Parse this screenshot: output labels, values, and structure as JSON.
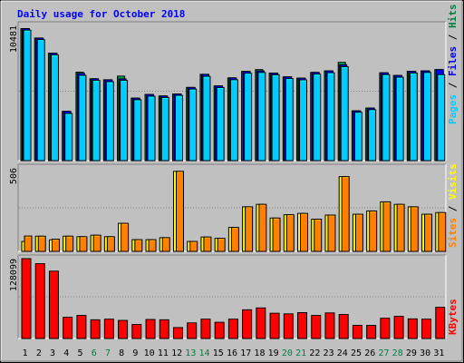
{
  "title": "Daily usage for October 2018",
  "colors": {
    "background": "#c0c0c0",
    "title": "#0000ff",
    "pages": "#00ccff",
    "files": "#0000ff",
    "hits": "#008040",
    "visits": "#ffff00",
    "sites": "#ff8000",
    "kbytes": "#ff0000",
    "weekend_label": "#008040"
  },
  "chart_data": [
    {
      "type": "bar",
      "panel": "hits-files-pages",
      "ymax_label": "10481",
      "ylim": [
        0,
        10481
      ],
      "legend": [
        "Pages",
        "Files",
        "Hits"
      ],
      "categories": [
        "1",
        "2",
        "3",
        "4",
        "5",
        "6",
        "7",
        "8",
        "9",
        "10",
        "11",
        "12",
        "13",
        "14",
        "15",
        "16",
        "17",
        "18",
        "19",
        "20",
        "21",
        "22",
        "23",
        "24",
        "25",
        "26",
        "27",
        "28",
        "29",
        "30",
        "31"
      ],
      "weekend_days": [
        "6",
        "7",
        "13",
        "14",
        "20",
        "21",
        "27",
        "28"
      ],
      "series": [
        {
          "name": "Hits",
          "values": [
            10370,
            9630,
            8440,
            3870,
            6950,
            6430,
            6350,
            6640,
            4910,
            5200,
            5080,
            5240,
            5750,
            6780,
            5870,
            6500,
            7010,
            7150,
            6880,
            6580,
            6480,
            6930,
            7050,
            7720,
            3910,
            4130,
            6900,
            6690,
            7020,
            7050,
            7150
          ]
        },
        {
          "name": "Files",
          "values": [
            10370,
            9630,
            8440,
            3870,
            6850,
            6430,
            6350,
            6420,
            4910,
            5200,
            5080,
            5240,
            5750,
            6780,
            5870,
            6500,
            7010,
            7050,
            6880,
            6580,
            6480,
            6930,
            7050,
            7530,
            3910,
            4130,
            6900,
            6690,
            7020,
            7050,
            7150
          ]
        },
        {
          "name": "Pages",
          "values": [
            10250,
            9500,
            8300,
            3700,
            6700,
            6300,
            6200,
            6300,
            4780,
            5060,
            4960,
            5120,
            5620,
            6620,
            5740,
            6350,
            6860,
            6920,
            6740,
            6440,
            6340,
            6790,
            6900,
            7380,
            3790,
            4000,
            6750,
            6550,
            6880,
            6920,
            6750
          ]
        }
      ]
    },
    {
      "type": "bar",
      "panel": "visits-sites",
      "ymax_label": "506",
      "ylim": [
        0,
        506
      ],
      "legend": [
        "Sites",
        "Visits"
      ],
      "categories": [
        "1",
        "2",
        "3",
        "4",
        "5",
        "6",
        "7",
        "8",
        "9",
        "10",
        "11",
        "12",
        "13",
        "14",
        "15",
        "16",
        "17",
        "18",
        "19",
        "20",
        "21",
        "22",
        "23",
        "24",
        "25",
        "26",
        "27",
        "28",
        "29",
        "30",
        "31"
      ],
      "series": [
        {
          "name": "Visits",
          "values": [
            60,
            92,
            70,
            92,
            89,
            98,
            89,
            170,
            71,
            71,
            83,
            485,
            60,
            87,
            79,
            145,
            270,
            285,
            202,
            222,
            230,
            195,
            220,
            453,
            225,
            245,
            300,
            285,
            270,
            225,
            235
          ]
        },
        {
          "name": "Sites",
          "values": [
            93,
            92,
            74,
            92,
            89,
            98,
            89,
            170,
            71,
            71,
            83,
            485,
            60,
            87,
            79,
            145,
            270,
            285,
            202,
            222,
            230,
            195,
            220,
            453,
            225,
            245,
            300,
            285,
            270,
            225,
            235
          ]
        }
      ]
    },
    {
      "type": "bar",
      "panel": "kbytes",
      "ymax_label": "128099",
      "ylim": [
        0,
        128099
      ],
      "legend": [
        "KBytes"
      ],
      "categories": [
        "1",
        "2",
        "3",
        "4",
        "5",
        "6",
        "7",
        "8",
        "9",
        "10",
        "11",
        "12",
        "13",
        "14",
        "15",
        "16",
        "17",
        "18",
        "19",
        "20",
        "21",
        "22",
        "23",
        "24",
        "25",
        "26",
        "27",
        "28",
        "29",
        "30",
        "31"
      ],
      "series": [
        {
          "name": "KBytes",
          "values": [
            128099,
            120000,
            108000,
            34000,
            37000,
            30000,
            31000,
            29000,
            22500,
            30500,
            30000,
            17500,
            25000,
            31000,
            26000,
            31000,
            46000,
            49000,
            40500,
            39500,
            41500,
            37000,
            41000,
            38500,
            21000,
            21000,
            32500,
            35500,
            31500,
            31000,
            50000
          ]
        }
      ]
    }
  ]
}
